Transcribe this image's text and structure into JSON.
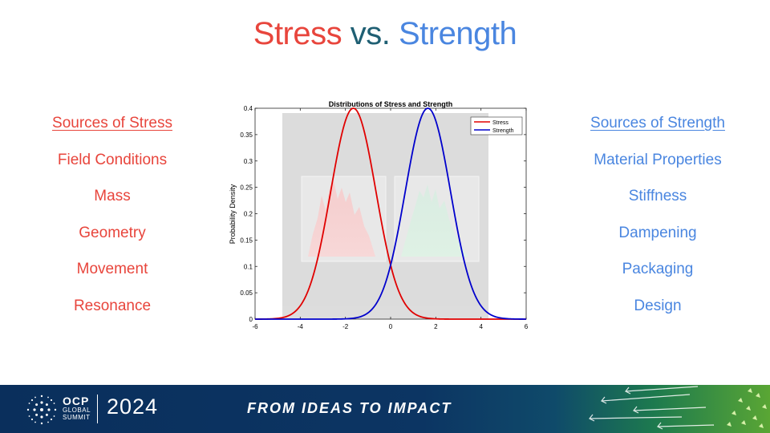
{
  "slide": {
    "title": {
      "word1": "Stress",
      "word2": "vs.",
      "word3": "Strength"
    },
    "left_column": {
      "heading": "Sources of Stress",
      "items": [
        "Field Conditions",
        "Mass",
        "Geometry",
        "Movement",
        "Resonance"
      ]
    },
    "right_column": {
      "heading": "Sources of Strength",
      "items": [
        "Material Properties",
        "Stiffness",
        "Dampening",
        "Packaging",
        "Design"
      ]
    }
  },
  "chart_data": {
    "type": "line",
    "title": "Distributions of Stress and Strength",
    "xlabel": "",
    "ylabel": "Probability Density",
    "xlim": [
      -6,
      6
    ],
    "ylim": [
      0,
      0.4
    ],
    "xticks": [
      -6,
      -4,
      -2,
      0,
      2,
      4,
      6
    ],
    "yticks": [
      0,
      0.05,
      0.1,
      0.15,
      0.2,
      0.25,
      0.3,
      0.35,
      0.4
    ],
    "legend_position": "top-right",
    "series": [
      {
        "name": "Stress",
        "color": "#e00000",
        "distribution": "normal",
        "mean": -1.65,
        "std": 1.0,
        "peak": 0.4
      },
      {
        "name": "Strength",
        "color": "#0000cc",
        "distribution": "normal",
        "mean": 1.65,
        "std": 1.0,
        "peak": 0.4
      }
    ]
  },
  "footer": {
    "logo_big": "OCP",
    "logo_small_1": "GLOBAL",
    "logo_small_2": "SUMMIT",
    "year": "2024",
    "tagline": "FROM IDEAS TO IMPACT",
    "colors": {
      "navy": "#0a2f5c",
      "green": "#5aa634"
    }
  }
}
